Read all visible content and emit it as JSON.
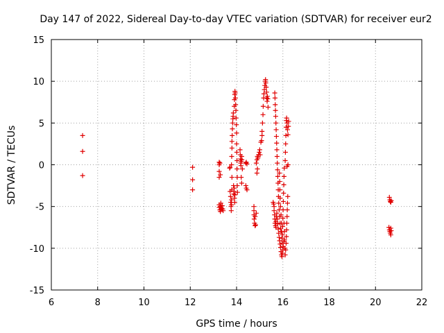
{
  "chart_data": {
    "type": "scatter",
    "title": "Day 147 of 2022, Sidereal Day-to-day VTEC variation (SDTVAR) for receiver eur2",
    "xlabel": "GPS time / hours",
    "ylabel": "SDTVAR / TECUs",
    "xlim": [
      6,
      22
    ],
    "ylim": [
      -15,
      15
    ],
    "x_ticks": [
      "6",
      "8",
      "10",
      "12",
      "14",
      "16",
      "18",
      "20",
      "22"
    ],
    "y_ticks": [
      "15",
      "10",
      "5",
      "0",
      "-5",
      "-10",
      "-15"
    ],
    "grid": true,
    "marker": "+",
    "color": "#e00000",
    "series": [
      {
        "name": "SDTVAR",
        "points": [
          [
            7.35,
            3.5
          ],
          [
            7.35,
            1.6
          ],
          [
            7.35,
            -1.3
          ],
          [
            12.1,
            -0.3
          ],
          [
            12.1,
            -1.8
          ],
          [
            12.1,
            -3.0
          ],
          [
            13.25,
            0.3
          ],
          [
            13.25,
            0.0
          ],
          [
            13.25,
            -0.8
          ],
          [
            13.25,
            -1.5
          ],
          [
            13.3,
            -1.2
          ],
          [
            13.28,
            0.2
          ],
          [
            13.25,
            -4.8
          ],
          [
            13.25,
            -5.1
          ],
          [
            13.28,
            -5.4
          ],
          [
            13.3,
            -5.6
          ],
          [
            13.3,
            -5.0
          ],
          [
            13.32,
            -4.6
          ],
          [
            13.35,
            -5.2
          ],
          [
            13.38,
            -4.9
          ],
          [
            13.4,
            -5.3
          ],
          [
            13.42,
            -5.5
          ],
          [
            13.7,
            -0.4
          ],
          [
            13.72,
            -0.3
          ],
          [
            13.72,
            -3.2
          ],
          [
            13.74,
            -3.8
          ],
          [
            13.75,
            -4.5
          ],
          [
            13.76,
            -5.0
          ],
          [
            13.77,
            -5.5
          ],
          [
            13.78,
            -4.8
          ],
          [
            13.78,
            -4.2
          ],
          [
            13.79,
            -3.0
          ],
          [
            13.8,
            -1.5
          ],
          [
            13.78,
            0.0
          ],
          [
            13.79,
            1.0
          ],
          [
            13.8,
            2.0
          ],
          [
            13.8,
            2.8
          ],
          [
            13.81,
            3.5
          ],
          [
            13.82,
            4.3
          ],
          [
            13.83,
            5.0
          ],
          [
            13.84,
            5.5
          ],
          [
            13.85,
            5.8
          ],
          [
            13.86,
            6.2
          ],
          [
            13.87,
            -2.5
          ],
          [
            13.88,
            -3.5
          ],
          [
            13.89,
            -3.2
          ],
          [
            13.9,
            -2.8
          ],
          [
            13.91,
            -4.0
          ],
          [
            13.92,
            -4.5
          ],
          [
            13.93,
            -3.6
          ],
          [
            13.9,
            7.0
          ],
          [
            13.91,
            7.8
          ],
          [
            13.92,
            8.4
          ],
          [
            13.93,
            8.8
          ],
          [
            13.94,
            8.6
          ],
          [
            13.95,
            8.0
          ],
          [
            13.96,
            7.2
          ],
          [
            13.97,
            6.5
          ],
          [
            13.98,
            5.6
          ],
          [
            13.99,
            4.8
          ],
          [
            14.0,
            3.8
          ],
          [
            14.0,
            2.5
          ],
          [
            14.01,
            1.5
          ],
          [
            14.02,
            0.5
          ],
          [
            14.02,
            -0.5
          ],
          [
            14.03,
            -1.5
          ],
          [
            14.03,
            -2.5
          ],
          [
            14.04,
            -3.3
          ],
          [
            14.15,
            1.8
          ],
          [
            14.16,
            1.2
          ],
          [
            14.17,
            0.7
          ],
          [
            14.18,
            0.2
          ],
          [
            14.19,
            -0.1
          ],
          [
            14.2,
            0.4
          ],
          [
            14.22,
            1.0
          ],
          [
            14.23,
            0.6
          ],
          [
            14.25,
            -0.5
          ],
          [
            14.2,
            -1.5
          ],
          [
            14.22,
            -2.2
          ],
          [
            14.4,
            0.2
          ],
          [
            14.42,
            0.3
          ],
          [
            14.45,
            0.1
          ],
          [
            14.4,
            -2.5
          ],
          [
            14.42,
            -2.8
          ],
          [
            14.45,
            -3.0
          ],
          [
            14.75,
            -5.0
          ],
          [
            14.75,
            -5.5
          ],
          [
            14.75,
            -6.0
          ],
          [
            14.76,
            -6.5
          ],
          [
            14.78,
            -7.0
          ],
          [
            14.8,
            -7.3
          ],
          [
            14.82,
            -7.2
          ],
          [
            14.8,
            -6.2
          ],
          [
            14.85,
            -5.8
          ],
          [
            14.85,
            0.2
          ],
          [
            14.88,
            0.6
          ],
          [
            14.9,
            1.0
          ],
          [
            14.92,
            0.8
          ],
          [
            14.95,
            1.2
          ],
          [
            14.98,
            1.5
          ],
          [
            15.0,
            1.8
          ],
          [
            15.02,
            1.2
          ],
          [
            14.9,
            -0.5
          ],
          [
            14.88,
            -1.0
          ],
          [
            15.05,
            2.7
          ],
          [
            15.08,
            2.9
          ],
          [
            15.1,
            3.5
          ],
          [
            15.1,
            4.0
          ],
          [
            15.12,
            5.0
          ],
          [
            15.14,
            6.0
          ],
          [
            15.15,
            7.0
          ],
          [
            15.17,
            8.0
          ],
          [
            15.18,
            8.5
          ],
          [
            15.2,
            9.0
          ],
          [
            15.22,
            9.5
          ],
          [
            15.24,
            10.0
          ],
          [
            15.25,
            10.2
          ],
          [
            15.26,
            9.8
          ],
          [
            15.28,
            9.3
          ],
          [
            15.3,
            8.7
          ],
          [
            15.3,
            8.0
          ],
          [
            15.32,
            7.6
          ],
          [
            15.33,
            8.2
          ],
          [
            15.35,
            7.9
          ],
          [
            15.36,
            6.9
          ],
          [
            15.58,
            -4.5
          ],
          [
            15.6,
            -4.7
          ],
          [
            15.62,
            -5.0
          ],
          [
            15.62,
            -5.5
          ],
          [
            15.64,
            -6.0
          ],
          [
            15.65,
            -6.5
          ],
          [
            15.66,
            -7.0
          ],
          [
            15.68,
            -7.3
          ],
          [
            15.7,
            -7.5
          ],
          [
            15.7,
            -6.8
          ],
          [
            15.72,
            -6.2
          ],
          [
            15.74,
            -5.8
          ],
          [
            15.76,
            -6.5
          ],
          [
            15.78,
            -7.1
          ],
          [
            15.8,
            -7.7
          ],
          [
            15.82,
            -8.2
          ],
          [
            15.84,
            -8.7
          ],
          [
            15.86,
            -9.1
          ],
          [
            15.88,
            -9.5
          ],
          [
            15.9,
            -9.9
          ],
          [
            15.92,
            -10.4
          ],
          [
            15.94,
            -10.8
          ],
          [
            15.96,
            -11.0
          ],
          [
            15.98,
            -10.6
          ],
          [
            16.0,
            -10.2
          ],
          [
            16.02,
            -9.8
          ],
          [
            16.04,
            -9.2
          ],
          [
            15.65,
            8.6
          ],
          [
            15.66,
            8.0
          ],
          [
            15.67,
            7.2
          ],
          [
            15.68,
            6.5
          ],
          [
            15.69,
            5.8
          ],
          [
            15.7,
            5.0
          ],
          [
            15.71,
            4.2
          ],
          [
            15.72,
            3.4
          ],
          [
            15.73,
            2.6
          ],
          [
            15.74,
            1.8
          ],
          [
            15.75,
            1.0
          ],
          [
            15.76,
            0.2
          ],
          [
            15.77,
            -0.6
          ],
          [
            15.78,
            -1.4
          ],
          [
            15.79,
            -2.2
          ],
          [
            15.8,
            -3.0
          ],
          [
            15.81,
            -3.8
          ],
          [
            15.82,
            -4.6
          ],
          [
            15.84,
            -5.4
          ],
          [
            15.86,
            -6.2
          ],
          [
            15.88,
            -7.0
          ],
          [
            15.9,
            -7.6
          ],
          [
            15.92,
            -8.0
          ],
          [
            15.85,
            -1.0
          ],
          [
            15.86,
            -2.0
          ],
          [
            15.87,
            -3.0
          ],
          [
            15.88,
            -4.0
          ],
          [
            15.9,
            -5.0
          ],
          [
            15.92,
            -6.0
          ],
          [
            15.94,
            -7.0
          ],
          [
            15.95,
            -8.0
          ],
          [
            15.96,
            -8.8
          ],
          [
            15.97,
            -9.4
          ],
          [
            15.98,
            -8.4
          ],
          [
            15.99,
            -7.4
          ],
          [
            16.0,
            -6.4
          ],
          [
            16.01,
            -5.4
          ],
          [
            16.02,
            -4.4
          ],
          [
            16.03,
            -3.4
          ],
          [
            16.04,
            -2.4
          ],
          [
            16.05,
            -1.4
          ],
          [
            16.06,
            -0.4
          ],
          [
            16.05,
            -7.0
          ],
          [
            16.06,
            -8.0
          ],
          [
            16.07,
            -9.0
          ],
          [
            16.08,
            -10.0
          ],
          [
            16.1,
            -10.8
          ],
          [
            16.12,
            -10.2
          ],
          [
            16.14,
            -9.4
          ],
          [
            16.15,
            -8.6
          ],
          [
            16.16,
            -7.8
          ],
          [
            16.17,
            -7.0
          ],
          [
            16.18,
            -6.2
          ],
          [
            16.19,
            -5.4
          ],
          [
            16.2,
            -4.6
          ],
          [
            16.21,
            -3.8
          ],
          [
            16.1,
            0.5
          ],
          [
            16.11,
            1.5
          ],
          [
            16.12,
            2.5
          ],
          [
            16.13,
            3.5
          ],
          [
            16.14,
            4.5
          ],
          [
            16.15,
            5.3
          ],
          [
            16.16,
            5.6
          ],
          [
            16.18,
            5.0
          ],
          [
            16.2,
            4.2
          ],
          [
            16.22,
            3.6
          ],
          [
            16.24,
            4.6
          ],
          [
            16.25,
            5.2
          ],
          [
            16.18,
            -0.2
          ],
          [
            16.22,
            0.0
          ],
          [
            20.6,
            -3.9
          ],
          [
            20.62,
            -4.2
          ],
          [
            20.64,
            -4.4
          ],
          [
            20.66,
            -4.5
          ],
          [
            20.68,
            -4.3
          ],
          [
            20.58,
            -7.5
          ],
          [
            20.6,
            -7.8
          ],
          [
            20.62,
            -8.0
          ],
          [
            20.64,
            -8.2
          ],
          [
            20.66,
            -8.4
          ],
          [
            20.66,
            -7.6
          ],
          [
            20.68,
            -7.9
          ]
        ]
      }
    ]
  }
}
